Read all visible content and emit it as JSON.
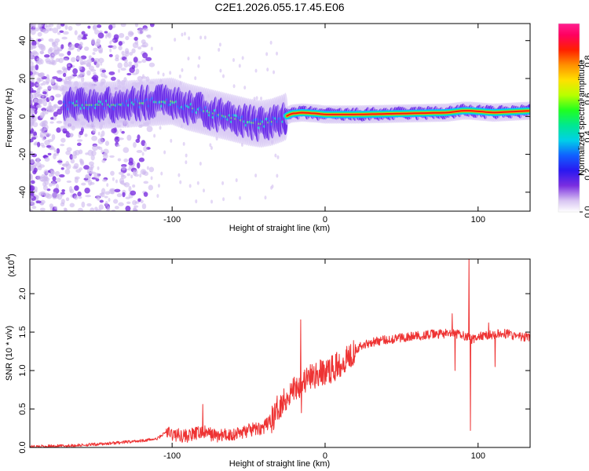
{
  "title": "C2E1.2026.055.17.45.E06",
  "chart_data": [
    {
      "type": "heatmap",
      "title": "C2E1.2026.055.17.45.E06",
      "xlabel": "Height of straight line (km)",
      "ylabel": "Frequency (Hz)",
      "xlim": [
        -193,
        134
      ],
      "ylim": [
        -50,
        49
      ],
      "xticks": [
        -100,
        0,
        100
      ],
      "xtick_labels": [
        "-100",
        "0",
        "100"
      ],
      "yticks": [
        -40,
        -20,
        0,
        20,
        40
      ],
      "ytick_labels": [
        "-40",
        "-20",
        "0",
        "20",
        "40"
      ],
      "ridge": {
        "x": [
          -165,
          -140,
          -120,
          -100,
          -90,
          -80,
          -70,
          -60,
          -50,
          -42,
          -35,
          -28,
          -22,
          -15,
          -5,
          0,
          20,
          50,
          80,
          90,
          95,
          110,
          134
        ],
        "y": [
          6,
          6,
          7,
          8,
          5,
          3,
          1,
          -1,
          -3,
          -4,
          -3,
          -1,
          1.5,
          2,
          1.5,
          1,
          1,
          1.5,
          2,
          3,
          3,
          2,
          3
        ]
      },
      "colorbar": {
        "label": "Normalized spectral amplitude",
        "range": [
          0,
          1
        ],
        "ticks": [
          0.0,
          0.2,
          0.4,
          0.6,
          0.8
        ],
        "tick_labels": [
          "0.0",
          "0.2",
          "0.4",
          "0.6",
          "0.8"
        ]
      }
    },
    {
      "type": "line",
      "xlabel": "Height of straight line (km)",
      "ylabel": "SNR (10 * v/v)",
      "y_scale_label": "(x10",
      "y_scale_exp": "4",
      "xlim": [
        -193,
        134
      ],
      "ylim": [
        0,
        2.45
      ],
      "xticks": [
        -100,
        0,
        100
      ],
      "xtick_labels": [
        "-100",
        "0",
        "100"
      ],
      "yticks": [
        0.0,
        0.5,
        1.0,
        1.5,
        2.0
      ],
      "ytick_labels": [
        "0.0",
        "0.5",
        "1.0",
        "1.5",
        "2.0"
      ],
      "series": [
        {
          "name": "SNR",
          "color": "#ee3333",
          "x": [
            -193,
            -170,
            -150,
            -130,
            -110,
            -104,
            -100,
            -90,
            -80,
            -70,
            -60,
            -50,
            -40,
            -34,
            -30,
            -25,
            -20,
            -15,
            -10,
            -5,
            0,
            5,
            10,
            15,
            20,
            25,
            30,
            40,
            50,
            60,
            70,
            80,
            88,
            92,
            96,
            100,
            110,
            120,
            125,
            134
          ],
          "y": [
            0.01,
            0.02,
            0.04,
            0.07,
            0.11,
            0.2,
            0.17,
            0.15,
            0.2,
            0.15,
            0.17,
            0.22,
            0.26,
            0.38,
            0.55,
            0.65,
            0.78,
            0.85,
            0.9,
            0.95,
            0.98,
            1.02,
            1.1,
            1.18,
            1.28,
            1.33,
            1.37,
            1.4,
            1.43,
            1.45,
            1.47,
            1.48,
            1.47,
            1.45,
            1.4,
            1.44,
            1.47,
            1.48,
            1.44,
            1.43
          ]
        }
      ],
      "spikes": [
        {
          "x": -80,
          "y": 0.56
        },
        {
          "x": -16,
          "y": 1.66
        },
        {
          "x": -15.5,
          "y": 0.45
        },
        {
          "x": 83,
          "y": 1.74
        },
        {
          "x": 85,
          "y": 1.0
        },
        {
          "x": 94,
          "y": 2.5
        },
        {
          "x": 95,
          "y": 0.22
        },
        {
          "x": 107,
          "y": 1.62
        },
        {
          "x": 111,
          "y": 1.05
        }
      ]
    }
  ]
}
